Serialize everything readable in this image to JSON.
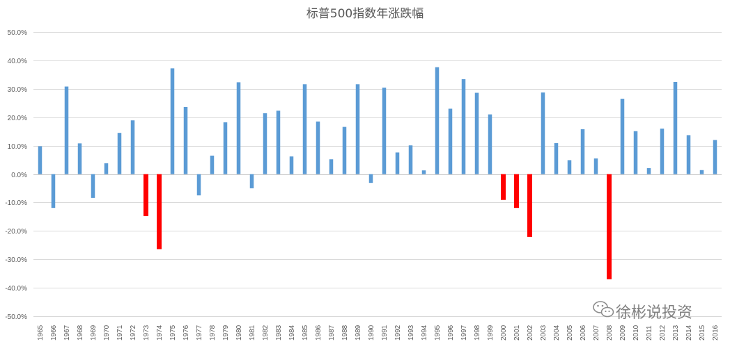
{
  "chart_data": {
    "type": "bar",
    "title": "标普500指数年涨跌幅",
    "xlabel": "",
    "ylabel": "",
    "ylim": [
      -50,
      50
    ],
    "yticks": [
      "50.0%",
      "40.0%",
      "30.0%",
      "20.0%",
      "10.0%",
      "0.0%",
      "-10.0%",
      "-20.0%",
      "-30.0%",
      "-40.0%",
      "-50.0%"
    ],
    "ytick_values": [
      50,
      40,
      30,
      20,
      10,
      0,
      -10,
      -20,
      -30,
      -40,
      -50
    ],
    "grid": true,
    "legend": "none",
    "categories": [
      "1965",
      "1966",
      "1967",
      "1968",
      "1969",
      "1970",
      "1971",
      "1972",
      "1973",
      "1974",
      "1975",
      "1976",
      "1977",
      "1978",
      "1979",
      "1980",
      "1981",
      "1982",
      "1983",
      "1984",
      "1985",
      "1986",
      "1987",
      "1988",
      "1989",
      "1990",
      "1991",
      "1992",
      "1993",
      "1994",
      "1995",
      "1996",
      "1997",
      "1998",
      "1999",
      "2000",
      "2001",
      "2002",
      "2003",
      "2004",
      "2005",
      "2006",
      "2007",
      "2008",
      "2009",
      "2010",
      "2011",
      "2012",
      "2013",
      "2014",
      "2015",
      "2016"
    ],
    "values": [
      9.8,
      -11.9,
      30.8,
      10.8,
      -8.4,
      3.8,
      14.5,
      18.9,
      -14.8,
      -26.4,
      37.2,
      23.6,
      -7.5,
      6.5,
      18.2,
      32.3,
      -5.0,
      21.4,
      22.3,
      6.2,
      31.6,
      18.5,
      5.2,
      16.6,
      31.6,
      -3.1,
      30.4,
      7.6,
      10.1,
      1.3,
      37.6,
      23.0,
      33.4,
      28.6,
      21.0,
      -9.1,
      -11.9,
      -22.1,
      28.7,
      10.9,
      4.9,
      15.8,
      5.5,
      -37.0,
      26.5,
      15.1,
      2.1,
      16.0,
      32.4,
      13.7,
      1.4,
      12.0
    ],
    "colors": {
      "default": "#5b9bd5",
      "highlight": "#ff0000"
    },
    "highlighted": [
      "1973",
      "1974",
      "2000",
      "2001",
      "2002",
      "2008"
    ]
  },
  "watermark": {
    "text": "徐彬说投资",
    "icon": "wechat-icon"
  }
}
